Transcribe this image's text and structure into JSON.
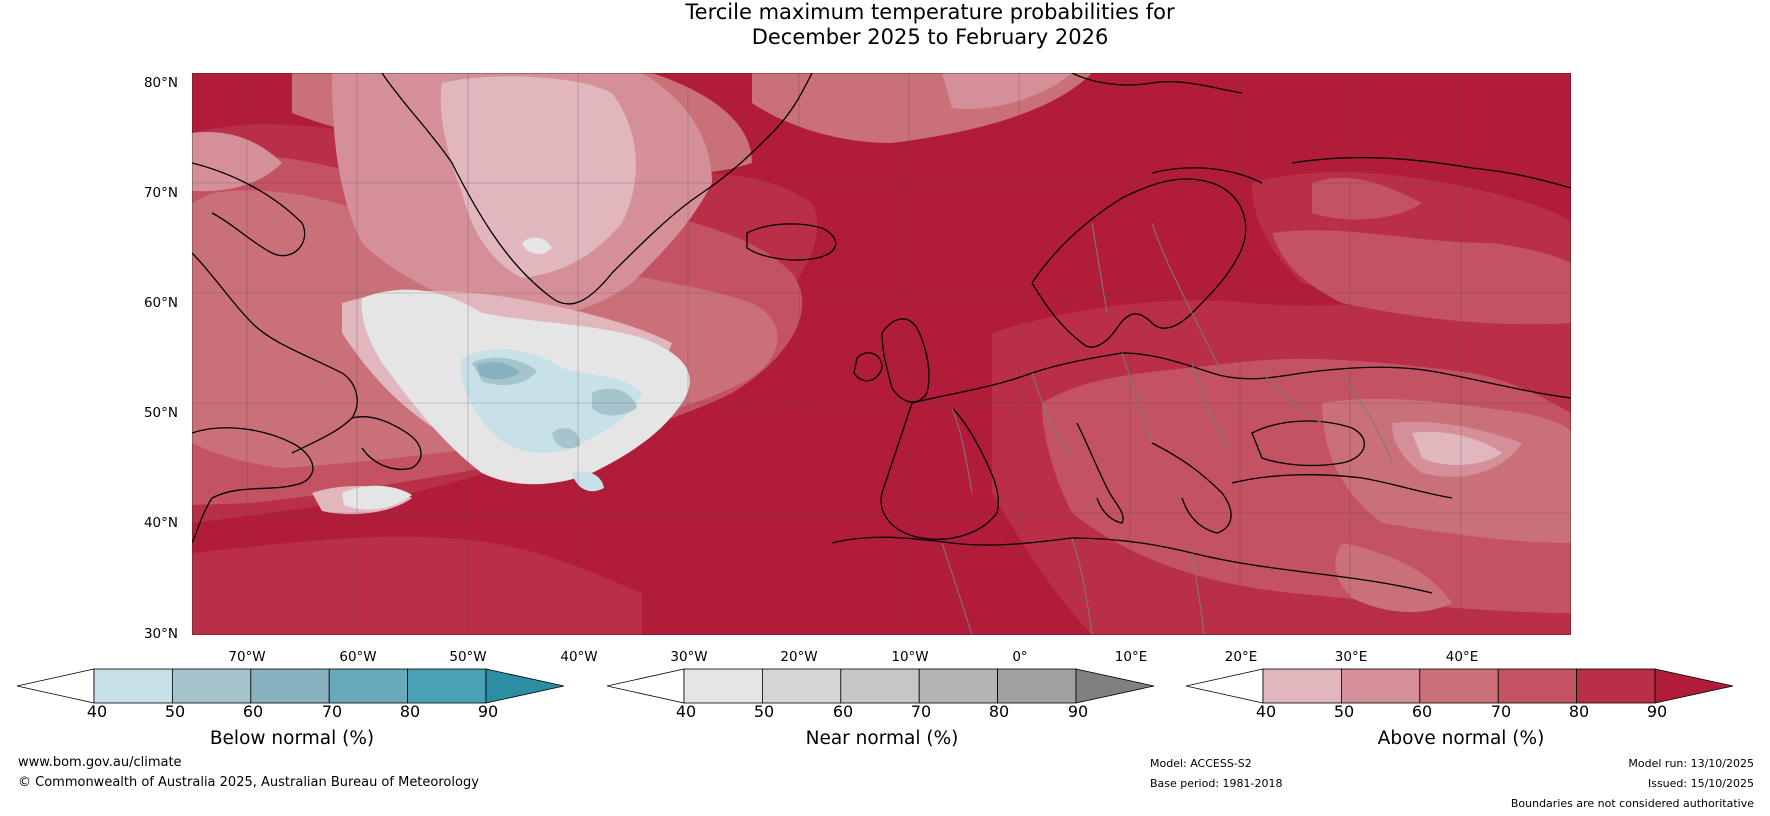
{
  "title": {
    "line1": "Tercile maximum temperature probabilities for",
    "line2": "December 2025 to February 2026"
  },
  "map": {
    "lat_labels": [
      "80°N",
      "70°N",
      "60°N",
      "50°N",
      "40°N",
      "30°N"
    ],
    "lon_labels": [
      "70°W",
      "60°W",
      "50°W",
      "40°W",
      "30°W",
      "20°W",
      "10°W",
      "0°",
      "10°E",
      "20°E",
      "30°E",
      "40°E"
    ],
    "lat_range": [
      30,
      80
    ],
    "lon_range": [
      -75,
      50
    ]
  },
  "colorbars": [
    {
      "label": "Below normal (%)",
      "ticks": [
        "40",
        "50",
        "60",
        "70",
        "80",
        "90"
      ],
      "colors": [
        "#c8e0e8",
        "#a6c4cc",
        "#88b2c0",
        "#68a9bc",
        "#48a2b3"
      ],
      "under_color": "#ffffff",
      "over_color": "#2c8ea3"
    },
    {
      "label": "Near normal (%)",
      "ticks": [
        "40",
        "50",
        "60",
        "70",
        "80",
        "90"
      ],
      "colors": [
        "#e5e5e5",
        "#d6d6d6",
        "#c6c6c6",
        "#b4b4b4",
        "#a0a0a0"
      ],
      "under_color": "#ffffff",
      "over_color": "#808080"
    },
    {
      "label": "Above normal (%)",
      "ticks": [
        "40",
        "50",
        "60",
        "70",
        "80",
        "90"
      ],
      "colors": [
        "#e1b6bd",
        "#d58f98",
        "#ca7079",
        "#c35262",
        "#b92f47"
      ],
      "under_color": "#ffffff",
      "over_color": "#b21c3b"
    }
  ],
  "footer": {
    "website": "www.bom.gov.au/climate",
    "copyright": "© Commonwealth of Australia 2025, Australian Bureau of Meteorology",
    "model": "Model: ACCESS-S2",
    "base_period": "Base period: 1981-2018",
    "model_run": "Model run: 13/10/2025",
    "issued": "Issued: 15/10/2025",
    "disclaimer": "Boundaries are not considered authoritative"
  },
  "colors": {
    "above_90": "#b21c3b",
    "above_80": "#b92f47",
    "above_70": "#c35262",
    "above_60": "#ca7079",
    "above_50": "#d58f98",
    "above_40": "#e1b6bd",
    "near_40": "#e5e5e5",
    "below_40": "#c8e0e8",
    "below_50": "#a6c4cc",
    "below_60": "#88b2c0",
    "coast": "#000000",
    "borders": "#7a7a7a"
  }
}
